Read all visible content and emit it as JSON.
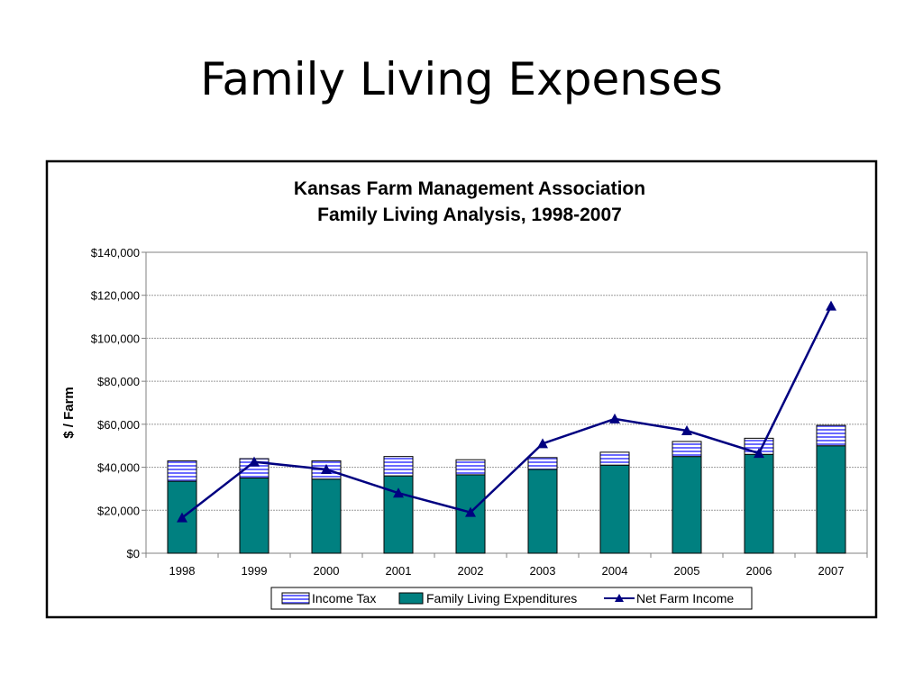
{
  "slide": {
    "title": "Family Living Expenses"
  },
  "chart_data": {
    "type": "bar",
    "title": "Kansas Farm Management Association",
    "subtitle": "Family Living Analysis, 1998-2007",
    "ylabel": "$ / Farm",
    "xlabel": "",
    "ylim": [
      0,
      140000
    ],
    "y_ticks": [
      0,
      20000,
      40000,
      60000,
      80000,
      100000,
      120000,
      140000
    ],
    "y_tick_labels": [
      "$0",
      "$20,000",
      "$40,000",
      "$60,000",
      "$80,000",
      "$100,000",
      "$120,000",
      "$140,000"
    ],
    "grid": true,
    "legend_position": "bottom",
    "stacked": true,
    "categories": [
      "1998",
      "1999",
      "2000",
      "2001",
      "2002",
      "2003",
      "2004",
      "2005",
      "2006",
      "2007"
    ],
    "series": [
      {
        "name": "Income Tax",
        "type": "bar",
        "color": "#6b6bff",
        "values": [
          9500,
          9000,
          8500,
          9000,
          7000,
          5500,
          6000,
          7000,
          7500,
          9500
        ]
      },
      {
        "name": "Family Living Expenditures",
        "type": "bar",
        "color": "#008080",
        "values": [
          33500,
          35000,
          34500,
          36000,
          36500,
          39000,
          41000,
          45000,
          46000,
          50000
        ]
      },
      {
        "name": "Net Farm Income",
        "type": "line",
        "color": "#000080",
        "values": [
          16500,
          42500,
          39000,
          28000,
          19000,
          51000,
          62500,
          57000,
          46500,
          115000
        ]
      }
    ]
  }
}
